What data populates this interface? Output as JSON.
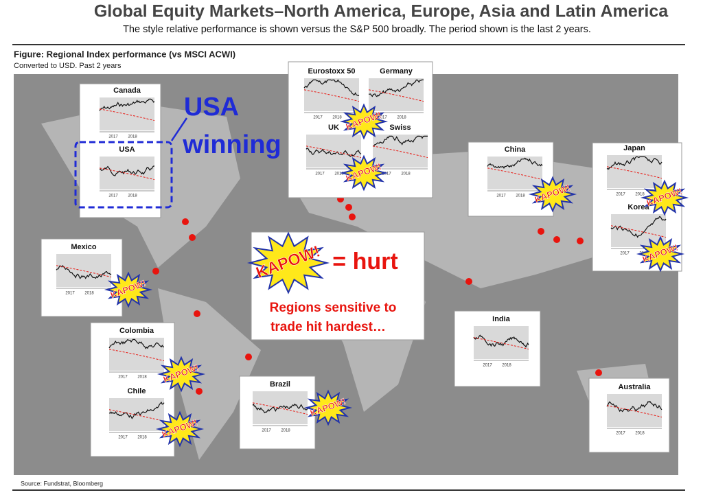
{
  "header": {
    "title": "Global Equity Markets–North America, Europe, Asia and Latin America",
    "subtitle": "The style relative performance is shown versus the S&P 500 broadly.  The period shown is the last 2 years."
  },
  "figure": {
    "title": "Figure: Regional Index performance (vs MSCI ACWI)",
    "subtitle": "Converted to USD. Past 2 years"
  },
  "axis_labels": [
    "2017",
    "2018"
  ],
  "panels": [
    {
      "label": "Canada"
    },
    {
      "label": "USA"
    },
    {
      "label": "Eurostoxx 50"
    },
    {
      "label": "Germany"
    },
    {
      "label": "UK"
    },
    {
      "label": "Swiss"
    },
    {
      "label": "China"
    },
    {
      "label": "Japan"
    },
    {
      "label": "Korea"
    },
    {
      "label": "Mexico"
    },
    {
      "label": "Colombia"
    },
    {
      "label": "Chile"
    },
    {
      "label": "Brazil"
    },
    {
      "label": "India"
    },
    {
      "label": "Australia"
    }
  ],
  "callout": {
    "lines": [
      "USA",
      "winning"
    ]
  },
  "burst_label": "KAPOW!",
  "legend": {
    "equals": "= hurt",
    "note": [
      "Regions sensitive to",
      "trade hit hardest…"
    ]
  },
  "source": "Source: Fundstrat, Bloomberg"
}
